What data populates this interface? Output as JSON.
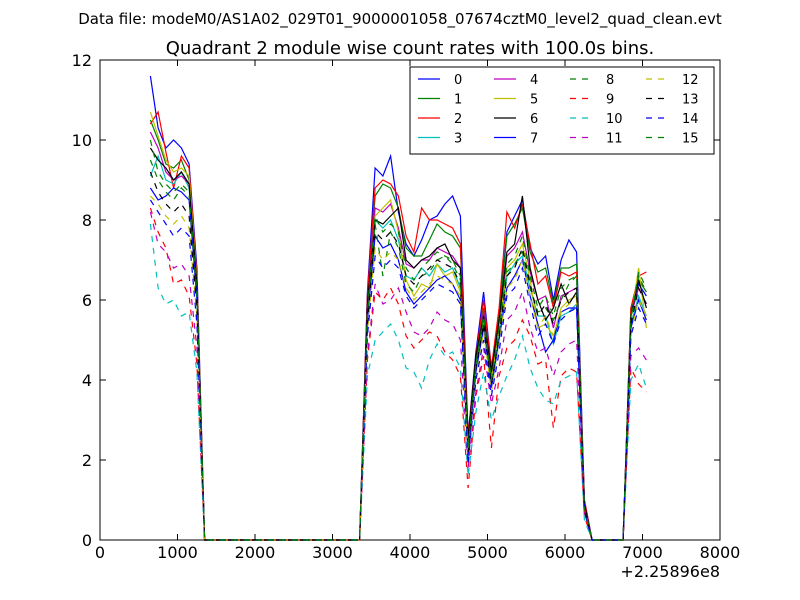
{
  "chart_data": {
    "type": "line",
    "suptitle": "Data file: modeM0/AS1A02_029T01_9000001058_07674cztM0_level2_quad_clean.evt",
    "title": "Quadrant 2 module wise count rates with 100.0s bins.",
    "xlabel": "",
    "ylabel": "",
    "xlim": [
      0,
      8000
    ],
    "ylim": [
      0,
      12
    ],
    "x_offset_label": "+2.25896e8",
    "x_ticks": [
      0,
      1000,
      2000,
      3000,
      4000,
      5000,
      6000,
      7000,
      8000
    ],
    "y_ticks": [
      0,
      2,
      4,
      6,
      8,
      10,
      12
    ],
    "grid": false,
    "legend": {
      "placement": "top-right",
      "columns": 4
    },
    "x": [
      650,
      750,
      850,
      950,
      1050,
      1150,
      1250,
      1350,
      1450,
      1550,
      1650,
      1750,
      1850,
      1950,
      2050,
      2150,
      2250,
      2350,
      2450,
      2550,
      2650,
      2750,
      2850,
      2950,
      3050,
      3150,
      3250,
      3350,
      3450,
      3550,
      3650,
      3750,
      3850,
      3950,
      4050,
      4150,
      4250,
      4350,
      4450,
      4550,
      4650,
      4750,
      4850,
      4950,
      5050,
      5150,
      5250,
      5350,
      5450,
      5550,
      5650,
      5750,
      5850,
      5950,
      6050,
      6150,
      6250,
      6350,
      6450,
      6550,
      6650,
      6750,
      6850,
      6950,
      7050
    ],
    "series": [
      {
        "name": "0",
        "color": "#0000ff",
        "dash": "solid",
        "values": [
          11.6,
          10.3,
          9.8,
          10,
          9.8,
          9.4,
          6.8,
          0,
          0,
          0,
          0,
          0,
          0,
          0,
          0,
          0,
          0,
          0,
          0,
          0,
          0,
          0,
          0,
          0,
          0,
          0,
          0,
          0,
          6.2,
          9.3,
          9.1,
          9.6,
          8.2,
          7.4,
          7.1,
          7.5,
          8.0,
          8.1,
          8.4,
          8.6,
          8.1,
          2.6,
          4.7,
          6.2,
          4.3,
          5.7,
          7.7,
          8.1,
          8.5,
          7.3,
          6.9,
          7.1,
          6.0,
          7.0,
          7.5,
          7.2,
          1.0,
          0,
          0,
          0,
          0,
          0,
          5.7,
          6.4,
          6.1
        ]
      },
      {
        "name": "1",
        "color": "#008000",
        "dash": "solid",
        "values": [
          10.5,
          10.0,
          9.4,
          9.3,
          9.5,
          9.0,
          6.4,
          0,
          0,
          0,
          0,
          0,
          0,
          0,
          0,
          0,
          0,
          0,
          0,
          0,
          0,
          0,
          0,
          0,
          0,
          0,
          0,
          0,
          5.9,
          8.6,
          8.9,
          8.8,
          8.3,
          7.3,
          7.1,
          7.1,
          7.5,
          7.9,
          7.7,
          7.6,
          7.3,
          2.5,
          4.5,
          5.8,
          4.2,
          5.6,
          7.6,
          7.9,
          8.3,
          7.2,
          6.7,
          6.8,
          5.9,
          6.8,
          6.8,
          6.9,
          0.9,
          0,
          0,
          0,
          0,
          0,
          5.8,
          6.5,
          6.2
        ]
      },
      {
        "name": "2",
        "color": "#ff0000",
        "dash": "solid",
        "values": [
          10.4,
          10.7,
          9.7,
          8.8,
          9.6,
          9.3,
          6.6,
          0,
          0,
          0,
          0,
          0,
          0,
          0,
          0,
          0,
          0,
          0,
          0,
          0,
          0,
          0,
          0,
          0,
          0,
          0,
          0,
          0,
          6.1,
          8.8,
          9.0,
          8.9,
          8.6,
          7.6,
          7.2,
          8.3,
          8.0,
          8.0,
          7.9,
          7.8,
          7.4,
          2.6,
          4.6,
          6.0,
          4.3,
          5.8,
          8.2,
          7.8,
          8.4,
          7.4,
          6.4,
          6.6,
          5.8,
          6.7,
          6.6,
          6.7,
          1.0,
          0,
          0,
          0,
          0,
          0,
          5.8,
          6.6,
          6.7
        ]
      },
      {
        "name": "3",
        "color": "#00bfbf",
        "dash": "solid",
        "values": [
          9.1,
          9.6,
          9.0,
          8.9,
          9.2,
          8.8,
          6.2,
          0,
          0,
          0,
          0,
          0,
          0,
          0,
          0,
          0,
          0,
          0,
          0,
          0,
          0,
          0,
          0,
          0,
          0,
          0,
          0,
          0,
          5.6,
          8.0,
          7.8,
          8.0,
          7.5,
          6.6,
          6.5,
          6.8,
          6.6,
          6.9,
          6.7,
          6.8,
          6.3,
          2.2,
          4.3,
          5.4,
          3.9,
          5.2,
          6.6,
          6.9,
          7.1,
          6.3,
          5.6,
          5.6,
          4.9,
          5.6,
          5.7,
          5.9,
          0.8,
          0,
          0,
          0,
          0,
          0,
          5.4,
          6.1,
          5.6
        ]
      },
      {
        "name": "4",
        "color": "#bf00bf",
        "dash": "solid",
        "values": [
          10.2,
          9.8,
          9.2,
          9.0,
          9.1,
          8.9,
          6.3,
          0,
          0,
          0,
          0,
          0,
          0,
          0,
          0,
          0,
          0,
          0,
          0,
          0,
          0,
          0,
          0,
          0,
          0,
          0,
          0,
          0,
          5.8,
          8.3,
          8.2,
          8.4,
          7.8,
          6.9,
          6.8,
          7.0,
          7.0,
          7.3,
          7.2,
          7.1,
          6.8,
          2.4,
          4.5,
          5.7,
          4.1,
          5.4,
          7.1,
          7.3,
          7.7,
          6.7,
          6.0,
          6.1,
          5.3,
          6.1,
          6.2,
          6.3,
          0.9,
          0,
          0,
          0,
          0,
          0,
          5.6,
          6.3,
          5.9
        ]
      },
      {
        "name": "5",
        "color": "#bfbf00",
        "dash": "solid",
        "values": [
          10.7,
          10.1,
          9.5,
          9.2,
          9.3,
          9.1,
          6.5,
          0,
          0,
          0,
          0,
          0,
          0,
          0,
          0,
          0,
          0,
          0,
          0,
          0,
          0,
          0,
          0,
          0,
          0,
          0,
          0,
          0,
          5.7,
          8.1,
          8.3,
          8.5,
          7.7,
          6.5,
          6.1,
          6.4,
          6.3,
          6.9,
          6.6,
          6.7,
          6.2,
          2.3,
          4.4,
          5.5,
          4.0,
          5.3,
          6.8,
          7.0,
          7.4,
          6.5,
          5.3,
          5.4,
          5.1,
          5.8,
          6.0,
          6.1,
          0.8,
          0,
          0,
          0,
          0,
          0,
          5.5,
          6.8,
          5.3
        ]
      },
      {
        "name": "6",
        "color": "#000000",
        "dash": "solid",
        "values": [
          9.8,
          9.5,
          9.3,
          9.0,
          9.2,
          8.9,
          6.4,
          0,
          0,
          0,
          0,
          0,
          0,
          0,
          0,
          0,
          0,
          0,
          0,
          0,
          0,
          0,
          0,
          0,
          0,
          0,
          0,
          0,
          5.9,
          8.0,
          7.9,
          8.1,
          8.3,
          7.0,
          6.8,
          7.0,
          7.1,
          7.3,
          7.4,
          7.0,
          6.8,
          2.5,
          4.6,
          5.6,
          4.2,
          5.5,
          7.2,
          7.4,
          8.6,
          6.8,
          6.0,
          5.5,
          5.8,
          6.4,
          5.9,
          6.2,
          0.9,
          0,
          0,
          0,
          0,
          0,
          5.6,
          6.5,
          5.8
        ]
      },
      {
        "name": "7",
        "color": "#0000ff",
        "dash": "solid",
        "values": [
          8.8,
          8.5,
          8.6,
          8.8,
          8.7,
          8.5,
          6.0,
          0,
          0,
          0,
          0,
          0,
          0,
          0,
          0,
          0,
          0,
          0,
          0,
          0,
          0,
          0,
          0,
          0,
          0,
          0,
          0,
          0,
          5.5,
          7.6,
          7.3,
          7.4,
          7.0,
          6.2,
          5.9,
          6.1,
          6.3,
          6.5,
          6.6,
          6.4,
          6.0,
          2.1,
          4.2,
          5.3,
          3.8,
          5.0,
          6.3,
          6.6,
          7.0,
          6.1,
          5.4,
          4.7,
          5.0,
          5.7,
          5.8,
          5.8,
          0.8,
          0,
          0,
          0,
          0,
          0,
          5.3,
          6.0,
          5.5
        ]
      },
      {
        "name": "8",
        "color": "#008000",
        "dash": "dashed",
        "values": [
          9.5,
          9.0,
          8.7,
          8.5,
          8.8,
          8.6,
          6.1,
          0,
          0,
          0,
          0,
          0,
          0,
          0,
          0,
          0,
          0,
          0,
          0,
          0,
          0,
          0,
          0,
          0,
          0,
          0,
          0,
          0,
          5.6,
          7.9,
          6.6,
          7.7,
          7.3,
          6.4,
          6.2,
          6.6,
          6.7,
          7.0,
          7.1,
          6.9,
          6.5,
          2.3,
          4.4,
          5.5,
          4.0,
          5.2,
          6.7,
          6.9,
          7.2,
          6.3,
          5.7,
          5.8,
          5.5,
          6.0,
          6.4,
          6.6,
          0.8,
          0,
          0,
          0,
          0,
          0,
          5.5,
          6.7,
          6.3
        ]
      },
      {
        "name": "9",
        "color": "#ff0000",
        "dash": "dashed",
        "values": [
          8.3,
          7.7,
          7.3,
          6.4,
          6.5,
          6.1,
          4.4,
          0,
          0,
          0,
          0,
          0,
          0,
          0,
          0,
          0,
          0,
          0,
          0,
          0,
          0,
          0,
          0,
          0,
          0,
          0,
          0,
          0,
          4.5,
          6.2,
          6.0,
          6.3,
          5.9,
          5.1,
          4.8,
          5.0,
          5.2,
          5.1,
          4.7,
          4.5,
          4.1,
          1.3,
          3.6,
          4.6,
          2.3,
          4.1,
          4.8,
          5.0,
          5.5,
          5.1,
          4.4,
          4.5,
          2.8,
          4.1,
          4.3,
          4.2,
          0.6,
          0,
          0,
          0,
          0,
          0,
          4.3,
          3.9,
          3.7
        ]
      },
      {
        "name": "10",
        "color": "#00bfbf",
        "dash": "dashed",
        "values": [
          7.9,
          6.3,
          5.9,
          6.0,
          5.6,
          5.7,
          4.2,
          0,
          0,
          0,
          0,
          0,
          0,
          0,
          0,
          0,
          0,
          0,
          0,
          0,
          0,
          0,
          0,
          0,
          0,
          0,
          0,
          0,
          4.1,
          5.0,
          5.2,
          5.4,
          5.0,
          4.3,
          4.2,
          3.8,
          4.5,
          4.9,
          4.6,
          4.7,
          4.3,
          1.6,
          3.2,
          4.2,
          3.0,
          3.6,
          4.1,
          4.5,
          5.1,
          4.3,
          3.8,
          3.5,
          3.4,
          4.0,
          4.1,
          4.2,
          0.5,
          0,
          0,
          0,
          0,
          0,
          4.0,
          4.4,
          3.8
        ]
      },
      {
        "name": "11",
        "color": "#bf00bf",
        "dash": "dashed",
        "values": [
          8.2,
          7.4,
          7.2,
          6.8,
          6.9,
          6.6,
          4.8,
          0,
          0,
          0,
          0,
          0,
          0,
          0,
          0,
          0,
          0,
          0,
          0,
          0,
          0,
          0,
          0,
          0,
          0,
          0,
          0,
          0,
          4.6,
          6.4,
          5.9,
          6.0,
          6.3,
          5.7,
          5.2,
          5.1,
          5.3,
          5.7,
          5.5,
          5.4,
          5.0,
          1.8,
          3.7,
          4.8,
          3.4,
          4.3,
          5.5,
          5.7,
          6.2,
          5.3,
          4.7,
          4.8,
          4.1,
          4.7,
          4.9,
          5.0,
          0.7,
          0,
          0,
          0,
          0,
          0,
          4.6,
          4.8,
          4.5
        ]
      },
      {
        "name": "12",
        "color": "#bfbf00",
        "dash": "dashed",
        "values": [
          8.6,
          8.4,
          8.1,
          7.9,
          8.1,
          7.8,
          5.6,
          0,
          0,
          0,
          0,
          0,
          0,
          0,
          0,
          0,
          0,
          0,
          0,
          0,
          0,
          0,
          0,
          0,
          0,
          0,
          0,
          0,
          5.2,
          7.3,
          7.0,
          7.2,
          7.0,
          6.3,
          6.0,
          6.2,
          6.4,
          6.6,
          6.5,
          6.4,
          6.1,
          2.0,
          4.1,
          5.2,
          3.7,
          4.9,
          6.3,
          6.5,
          7.0,
          6.1,
          5.3,
          5.6,
          5.1,
          5.7,
          5.9,
          6.0,
          0.8,
          0,
          0,
          0,
          0,
          0,
          5.2,
          6.0,
          5.6
        ]
      },
      {
        "name": "13",
        "color": "#000000",
        "dash": "dashed",
        "values": [
          9.2,
          8.7,
          8.4,
          8.2,
          8.4,
          8.1,
          5.8,
          0,
          0,
          0,
          0,
          0,
          0,
          0,
          0,
          0,
          0,
          0,
          0,
          0,
          0,
          0,
          0,
          0,
          0,
          0,
          0,
          0,
          5.4,
          7.7,
          7.5,
          7.7,
          7.4,
          6.6,
          6.4,
          6.6,
          6.8,
          7.0,
          6.9,
          6.8,
          6.4,
          2.2,
          4.3,
          5.4,
          3.9,
          5.1,
          6.6,
          6.8,
          7.3,
          6.4,
          5.6,
          5.9,
          5.4,
          6.0,
          6.2,
          6.3,
          0.8,
          0,
          0,
          0,
          0,
          0,
          5.4,
          6.3,
          5.9
        ]
      },
      {
        "name": "14",
        "color": "#0000ff",
        "dash": "dashed",
        "values": [
          8.5,
          8.2,
          7.9,
          7.6,
          7.8,
          7.6,
          5.4,
          0,
          0,
          0,
          0,
          0,
          0,
          0,
          0,
          0,
          0,
          0,
          0,
          0,
          0,
          0,
          0,
          0,
          0,
          0,
          0,
          0,
          5.1,
          7.1,
          6.8,
          7.0,
          6.8,
          6.1,
          5.8,
          6.0,
          6.2,
          6.4,
          6.3,
          6.2,
          5.9,
          1.9,
          4.0,
          5.0,
          3.6,
          4.7,
          6.1,
          6.3,
          6.8,
          5.9,
          5.1,
          5.4,
          4.9,
          5.5,
          5.7,
          5.8,
          0.7,
          0,
          0,
          0,
          0,
          0,
          5.1,
          5.8,
          5.4
        ]
      },
      {
        "name": "15",
        "color": "#008000",
        "dash": "dashed",
        "values": [
          10.0,
          9.2,
          8.9,
          8.7,
          8.9,
          8.7,
          6.2,
          0,
          0,
          0,
          0,
          0,
          0,
          0,
          0,
          0,
          0,
          0,
          0,
          0,
          0,
          0,
          0,
          0,
          0,
          0,
          0,
          0,
          5.7,
          8.1,
          7.7,
          7.9,
          7.7,
          6.8,
          6.5,
          6.8,
          7.0,
          7.2,
          7.1,
          7.0,
          6.6,
          2.3,
          4.4,
          5.6,
          4.0,
          5.3,
          6.9,
          7.1,
          7.6,
          6.6,
          5.8,
          6.1,
          5.6,
          6.3,
          6.5,
          6.6,
          0.8,
          0,
          0,
          0,
          0,
          0,
          5.6,
          6.6,
          6.2
        ]
      }
    ]
  }
}
